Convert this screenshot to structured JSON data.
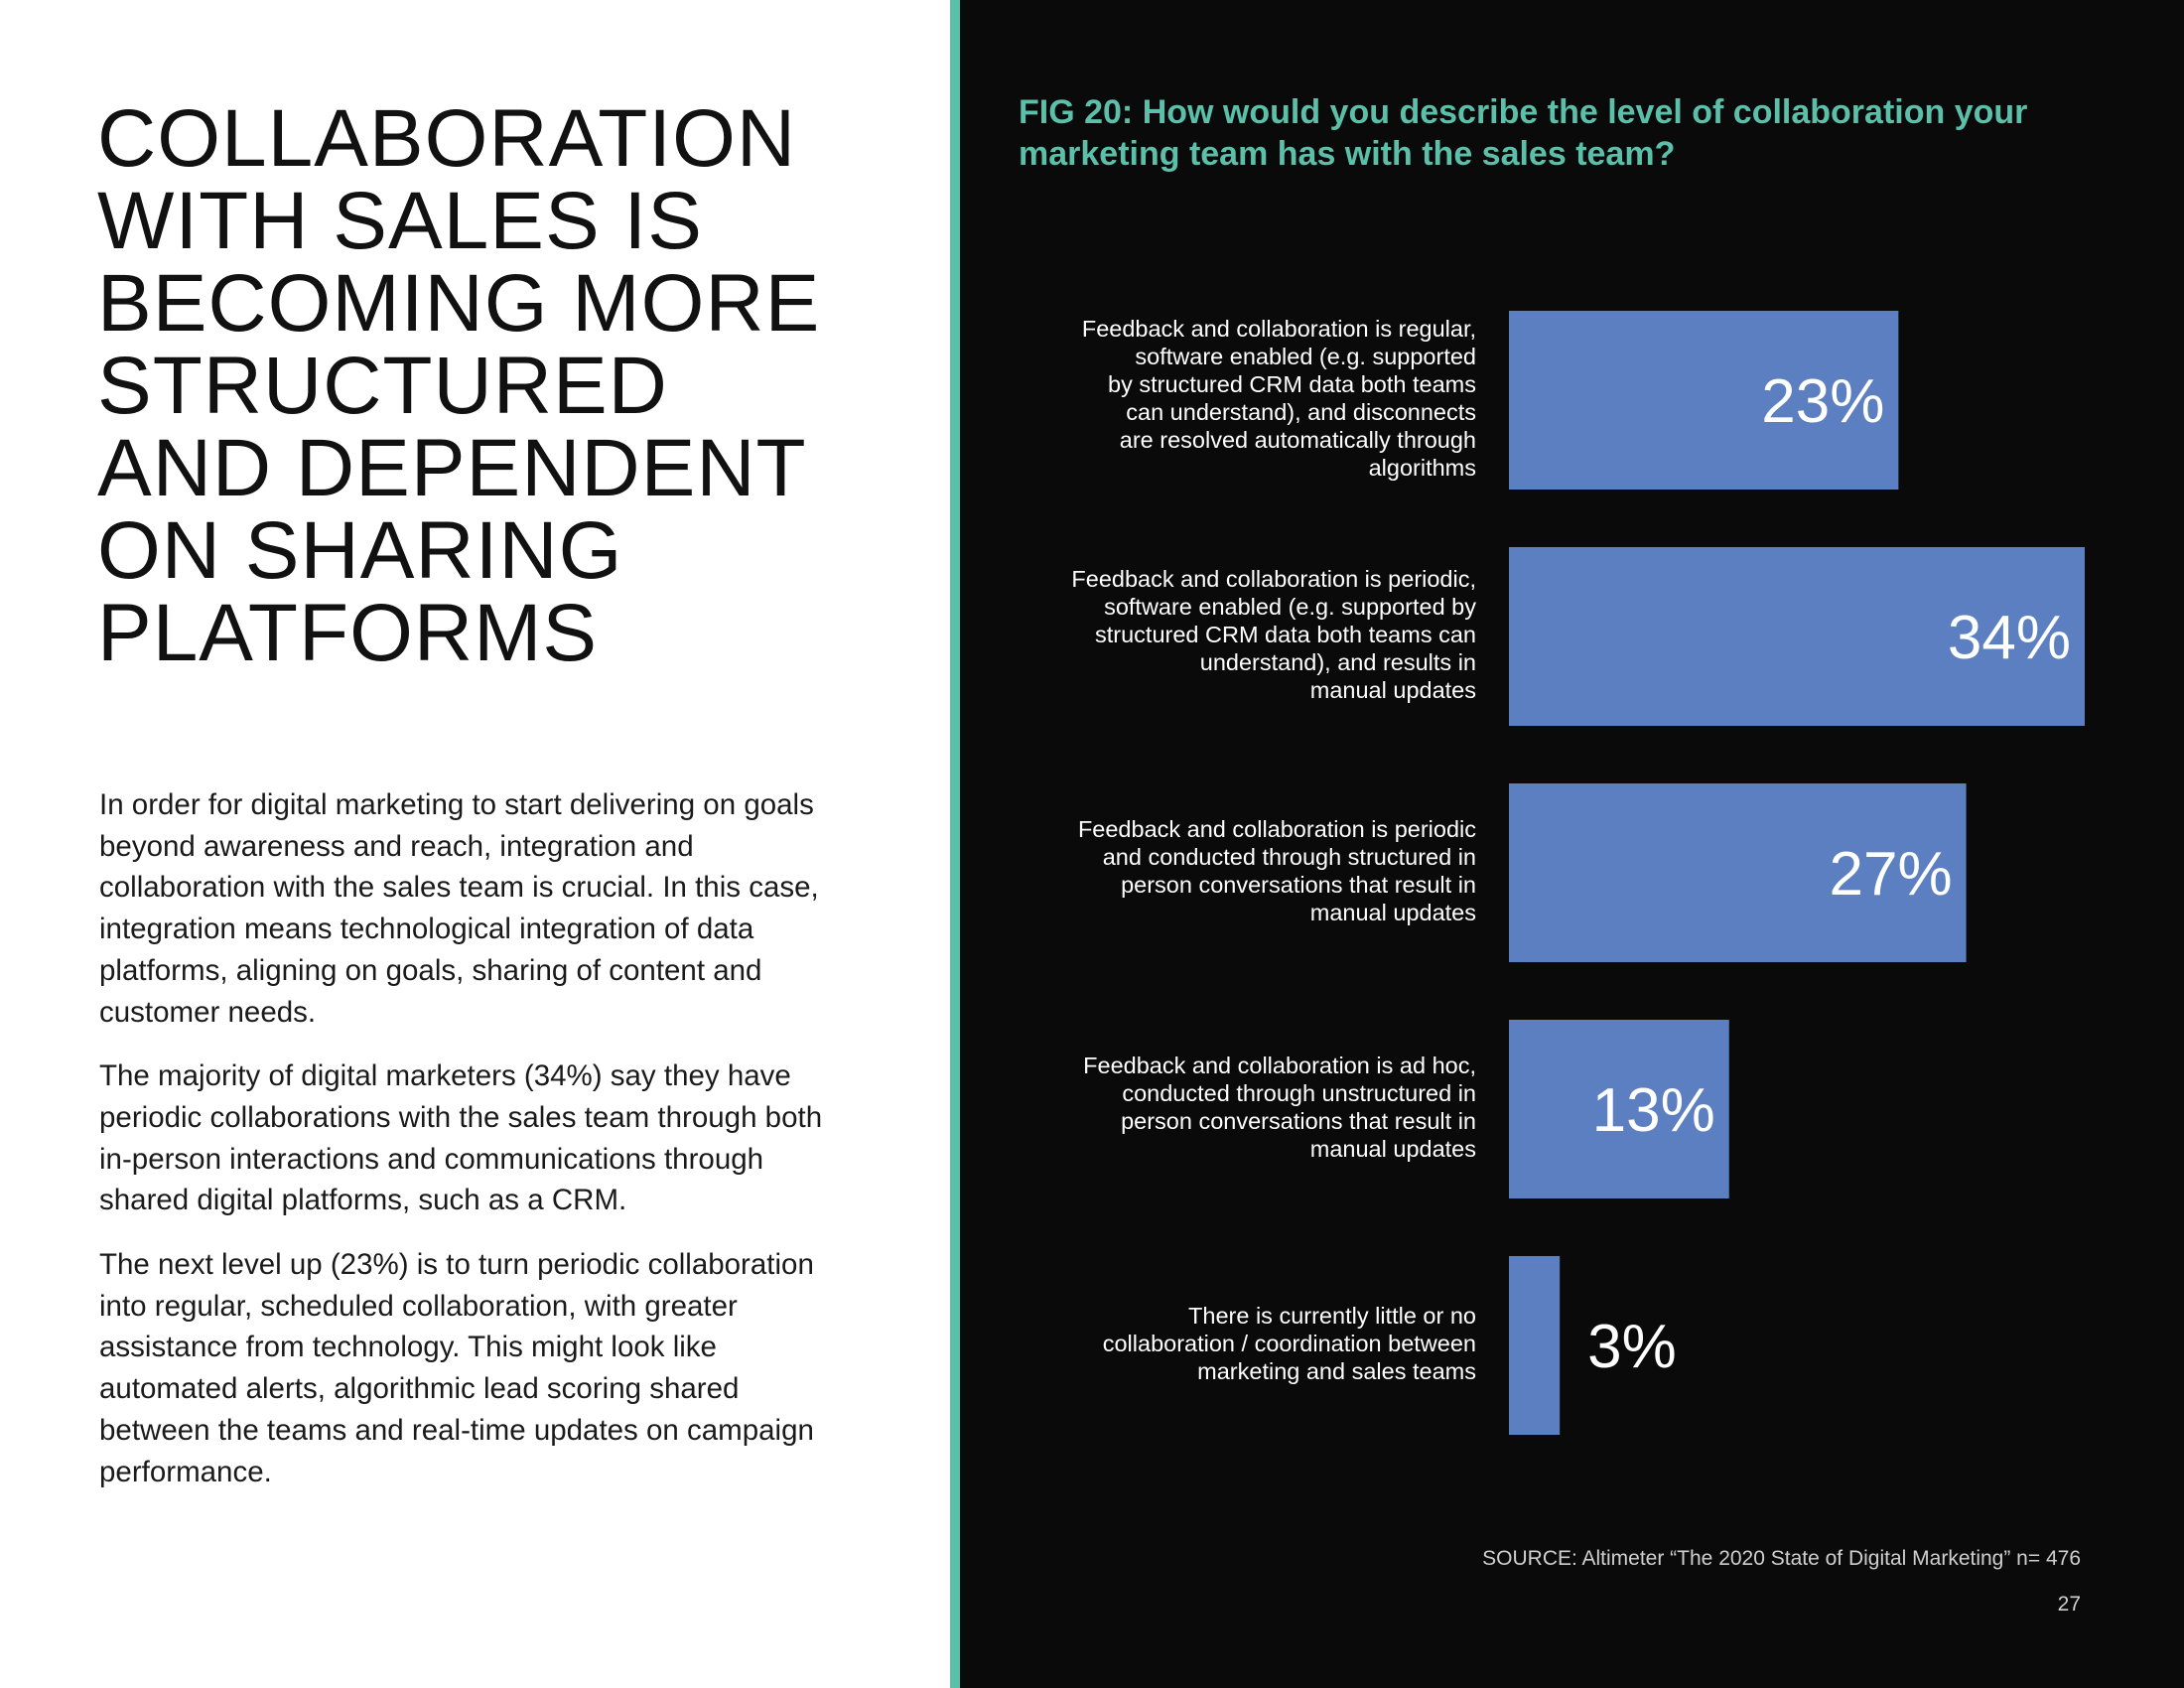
{
  "headline": [
    "COLLABORATION",
    "WITH SALES IS",
    "BECOMING MORE",
    "STRUCTURED",
    "AND DEPENDENT",
    "ON SHARING",
    "PLATFORMS"
  ],
  "body": [
    "In order for digital marketing to start delivering on goals beyond awareness and reach, integration and collaboration with the sales team is crucial. In this case, integration means technological integration of data platforms, aligning on goals, sharing of content and customer needs.",
    "The majority of digital marketers (34%) say they have periodic collaborations with the sales team through both in-person interactions and communications through shared digital platforms, such as a CRM.",
    "The next level up (23%) is to turn periodic collaboration into regular, scheduled collaboration, with greater assistance from technology. This might look like automated alerts, algorithmic lead scoring shared between the teams and real-time updates on campaign performance."
  ],
  "figure": {
    "title_lines": [
      "FIG 20: How would you describe the level of collaboration your",
      "marketing team has with the sales team?"
    ],
    "source": "SOURCE: Altimeter “The 2020 State of Digital Marketing” n= 476",
    "page_number": "27"
  },
  "colors": {
    "bar": "#5b7fc1",
    "accent": "#5bbfa9",
    "panel_background": "#0a0a0a"
  },
  "chart_data": {
    "type": "bar",
    "orientation": "horizontal",
    "title": "FIG 20: How would you describe the level of collaboration your marketing team has with the sales team?",
    "categories": [
      "Feedback and collaboration is regular, software enabled (e.g. supported by structured CRM data both teams can understand), and disconnects are resolved automatically through algorithms",
      "Feedback and collaboration is periodic, software enabled (e.g. supported by structured CRM data both teams can understand), and results in manual updates",
      "Feedback and collaboration is periodic and conducted through structured in person conversations that result in manual updates",
      "Feedback and collaboration is ad hoc, conducted through unstructured in person conversations that result in manual updates",
      "There is currently little or no collaboration / coordination between marketing and sales teams"
    ],
    "category_lines": [
      [
        "Feedback and collaboration is regular,",
        "software enabled (e.g. supported",
        "by structured CRM data both teams",
        "can understand), and disconnects",
        "are resolved automatically through",
        "algorithms"
      ],
      [
        "Feedback and collaboration is periodic,",
        "software enabled (e.g. supported by",
        "structured CRM data both teams can",
        "understand), and results in",
        "manual updates"
      ],
      [
        "Feedback and collaboration is periodic",
        "and conducted through structured in",
        "person conversations that  result in",
        "manual updates"
      ],
      [
        "Feedback and collaboration is ad hoc,",
        "conducted through unstructured in",
        "person conversations that result in",
        "manual updates"
      ],
      [
        "There is currently little or no",
        "collaboration / coordination between",
        "marketing and sales teams"
      ]
    ],
    "values": [
      23,
      34,
      27,
      13,
      3
    ],
    "value_labels": [
      "23%",
      "34%",
      "27%",
      "13%",
      "3%"
    ],
    "unit": "%",
    "xlim": [
      0,
      34
    ],
    "grid": false,
    "legend": "none"
  }
}
